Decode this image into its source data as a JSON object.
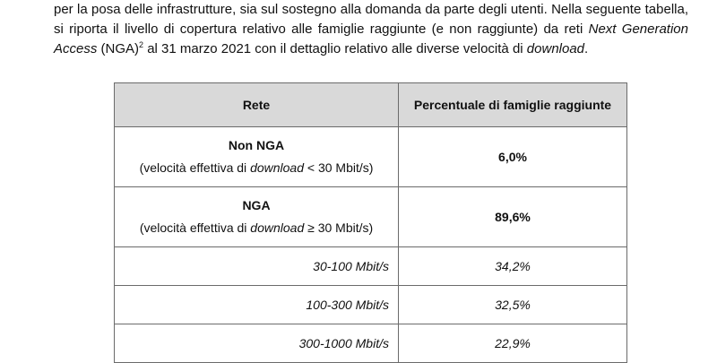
{
  "paragraph": {
    "line1": "per la posa delle infrastrutture, sia sul sostegno alla domanda da parte degli utenti. Nella seguente tabella,",
    "line2_a": "si riporta il livello di copertura relativo alle famiglie raggiunte (e non raggiunte) da reti",
    "line2_italic": "Next Generation",
    "line3_italic_a": "Access",
    "line3_b": "(NGA)",
    "footnote": "2",
    "line3_c": "al 31 marzo 2021 con il dettaglio relativo alle diverse velocità di",
    "line3_italic_b": "download",
    "line3_end": "."
  },
  "table": {
    "headers": [
      "Rete",
      "Percentuale di famiglie raggiunte"
    ],
    "rows": [
      {
        "title": "Non NGA",
        "desc_pre": "(velocità effettiva di ",
        "desc_italic": "download",
        "desc_post": " < 30 Mbit/s)",
        "value": "6,0%"
      },
      {
        "title": "NGA",
        "desc_pre": "(velocità effettiva di ",
        "desc_italic": "download",
        "desc_post": " ≥ 30 Mbit/s)",
        "value": "89,6%"
      }
    ],
    "subrows": [
      {
        "label": "30-100 Mbit/s",
        "value": "34,2%"
      },
      {
        "label": "100-300 Mbit/s",
        "value": "32,5%"
      },
      {
        "label": "300-1000 Mbit/s",
        "value": "22,9%"
      }
    ]
  }
}
